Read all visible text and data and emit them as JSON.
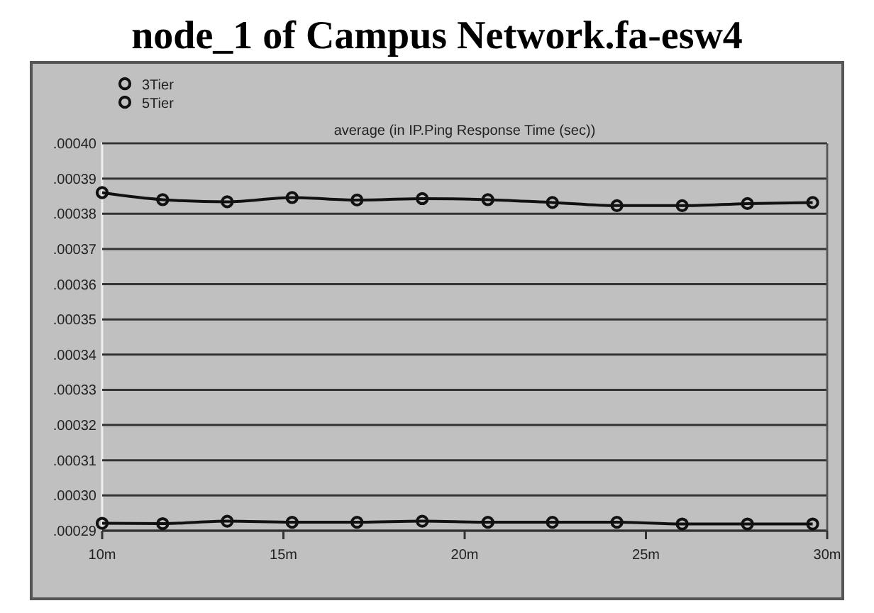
{
  "chart_data": {
    "type": "line",
    "title": "node_1 of Campus Network.fa-esw4",
    "subtitle": "average (in IP.Ping Response Time (sec))",
    "x": [
      10,
      11.67,
      13.45,
      15.24,
      17.03,
      18.83,
      20.64,
      22.42,
      24.2,
      26.0,
      27.8,
      29.6
    ],
    "series": [
      {
        "name": "3Tier",
        "color": "#111111",
        "values": [
          0.0002921,
          0.000292,
          0.0002927,
          0.0002924,
          0.0002924,
          0.0002927,
          0.0002924,
          0.0002924,
          0.0002924,
          0.0002919,
          0.0002919,
          0.0002919
        ]
      },
      {
        "name": "5Tier",
        "color": "#111111",
        "values": [
          0.000386,
          0.000384,
          0.0003834,
          0.0003846,
          0.0003839,
          0.0003843,
          0.000384,
          0.0003832,
          0.0003823,
          0.0003823,
          0.0003829,
          0.0003832
        ]
      }
    ],
    "xlim": [
      10,
      30
    ],
    "xticks": [
      {
        "value": 10,
        "label": "10m"
      },
      {
        "value": 15,
        "label": "15m"
      },
      {
        "value": 20,
        "label": "20m"
      },
      {
        "value": 25,
        "label": "25m"
      },
      {
        "value": 30,
        "label": "30m"
      }
    ],
    "ylim": [
      0.00029,
      0.0004
    ],
    "yticks": [
      {
        "value": 0.00029,
        "label": ".00029"
      },
      {
        "value": 0.0003,
        "label": ".00030"
      },
      {
        "value": 0.00031,
        "label": ".00031"
      },
      {
        "value": 0.00032,
        "label": ".00032"
      },
      {
        "value": 0.00033,
        "label": ".00033"
      },
      {
        "value": 0.00034,
        "label": ".00034"
      },
      {
        "value": 0.00035,
        "label": ".00035"
      },
      {
        "value": 0.00036,
        "label": ".00036"
      },
      {
        "value": 0.00037,
        "label": ".00037"
      },
      {
        "value": 0.00038,
        "label": ".00038"
      },
      {
        "value": 0.00039,
        "label": ".00039"
      },
      {
        "value": 0.0004,
        "label": ".00040"
      }
    ],
    "grid": "y",
    "legend": "top left",
    "marker": "circle",
    "line_style": "solid"
  }
}
